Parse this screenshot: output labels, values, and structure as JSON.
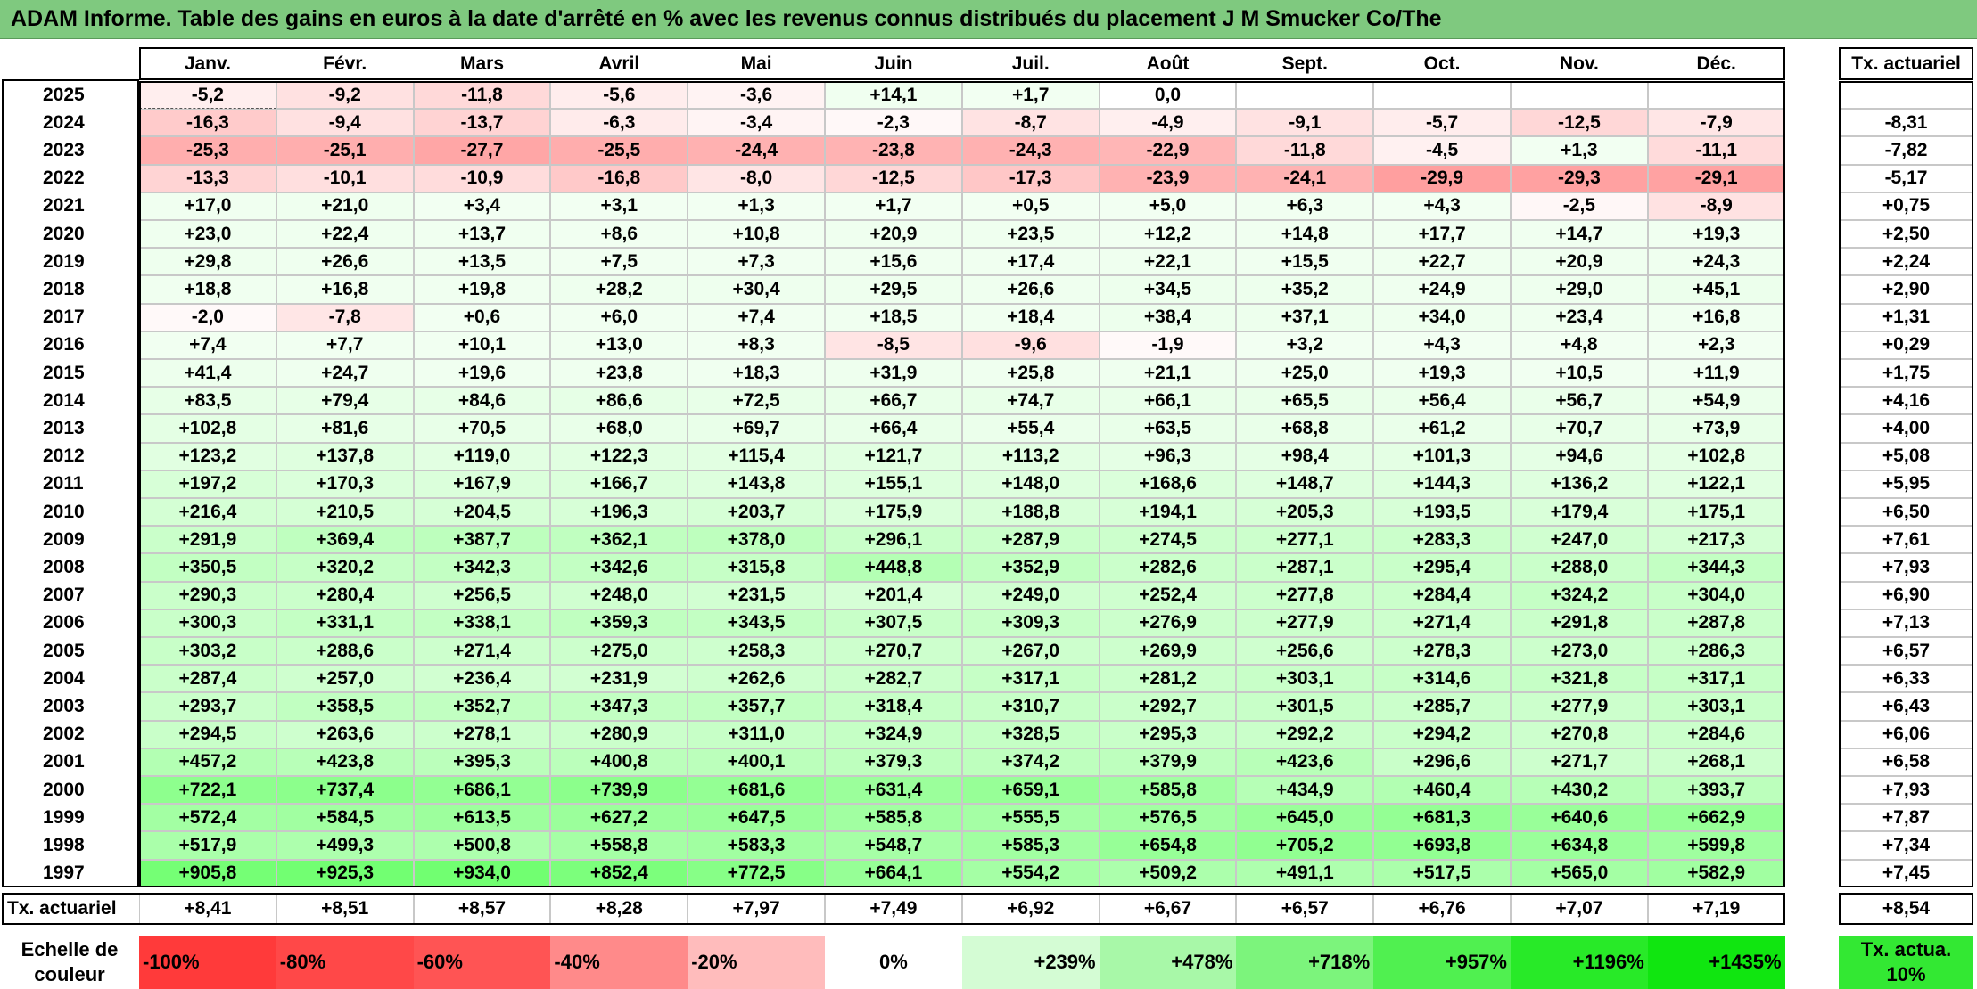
{
  "title": "ADAM Informe. Table des gains en euros à la date d'arrêté en % avec les revenus connus distribués du placement J M Smucker Co/The",
  "chart_data": {
    "type": "heatmap",
    "title": "ADAM Informe. Table des gains en euros à la date d'arrêté en % avec les revenus connus distribués du placement J M Smucker Co/The",
    "months": [
      "Janv.",
      "Févr.",
      "Mars",
      "Avril",
      "Mai",
      "Juin",
      "Juil.",
      "Août",
      "Sept.",
      "Oct.",
      "Nov.",
      "Déc."
    ],
    "rate_header": "Tx. actuariel",
    "years": [
      "2025",
      "2024",
      "2023",
      "2022",
      "2021",
      "2020",
      "2019",
      "2018",
      "2017",
      "2016",
      "2015",
      "2014",
      "2013",
      "2012",
      "2011",
      "2010",
      "2009",
      "2008",
      "2007",
      "2006",
      "2005",
      "2004",
      "2003",
      "2002",
      "2001",
      "2000",
      "1999",
      "1998",
      "1997"
    ],
    "values": [
      [
        "-5,2",
        "-9,2",
        "-11,8",
        "-5,6",
        "-3,6",
        "+14,1",
        "+1,7",
        "0,0",
        "",
        "",
        "",
        ""
      ],
      [
        "-16,3",
        "-9,4",
        "-13,7",
        "-6,3",
        "-3,4",
        "-2,3",
        "-8,7",
        "-4,9",
        "-9,1",
        "-5,7",
        "-12,5",
        "-7,9"
      ],
      [
        "-25,3",
        "-25,1",
        "-27,7",
        "-25,5",
        "-24,4",
        "-23,8",
        "-24,3",
        "-22,9",
        "-11,8",
        "-4,5",
        "+1,3",
        "-11,1"
      ],
      [
        "-13,3",
        "-10,1",
        "-10,9",
        "-16,8",
        "-8,0",
        "-12,5",
        "-17,3",
        "-23,9",
        "-24,1",
        "-29,9",
        "-29,3",
        "-29,1"
      ],
      [
        "+17,0",
        "+21,0",
        "+3,4",
        "+3,1",
        "+1,3",
        "+1,7",
        "+0,5",
        "+5,0",
        "+6,3",
        "+4,3",
        "-2,5",
        "-8,9"
      ],
      [
        "+23,0",
        "+22,4",
        "+13,7",
        "+8,6",
        "+10,8",
        "+20,9",
        "+23,5",
        "+12,2",
        "+14,8",
        "+17,7",
        "+14,7",
        "+19,3"
      ],
      [
        "+29,8",
        "+26,6",
        "+13,5",
        "+7,5",
        "+7,3",
        "+15,6",
        "+17,4",
        "+22,1",
        "+15,5",
        "+22,7",
        "+20,9",
        "+24,3"
      ],
      [
        "+18,8",
        "+16,8",
        "+19,8",
        "+28,2",
        "+30,4",
        "+29,5",
        "+26,6",
        "+34,5",
        "+35,2",
        "+24,9",
        "+29,0",
        "+45,1"
      ],
      [
        "-2,0",
        "-7,8",
        "+0,6",
        "+6,0",
        "+7,4",
        "+18,5",
        "+18,4",
        "+38,4",
        "+37,1",
        "+34,0",
        "+23,4",
        "+16,8"
      ],
      [
        "+7,4",
        "+7,7",
        "+10,1",
        "+13,0",
        "+8,3",
        "-8,5",
        "-9,6",
        "-1,9",
        "+3,2",
        "+4,3",
        "+4,8",
        "+2,3"
      ],
      [
        "+41,4",
        "+24,7",
        "+19,6",
        "+23,8",
        "+18,3",
        "+31,9",
        "+25,8",
        "+21,1",
        "+25,0",
        "+19,3",
        "+10,5",
        "+11,9"
      ],
      [
        "+83,5",
        "+79,4",
        "+84,6",
        "+86,6",
        "+72,5",
        "+66,7",
        "+74,7",
        "+66,1",
        "+65,5",
        "+56,4",
        "+56,7",
        "+54,9"
      ],
      [
        "+102,8",
        "+81,6",
        "+70,5",
        "+68,0",
        "+69,7",
        "+66,4",
        "+55,4",
        "+63,5",
        "+68,8",
        "+61,2",
        "+70,7",
        "+73,9"
      ],
      [
        "+123,2",
        "+137,8",
        "+119,0",
        "+122,3",
        "+115,4",
        "+121,7",
        "+113,2",
        "+96,3",
        "+98,4",
        "+101,3",
        "+94,6",
        "+102,8"
      ],
      [
        "+197,2",
        "+170,3",
        "+167,9",
        "+166,7",
        "+143,8",
        "+155,1",
        "+148,0",
        "+168,6",
        "+148,7",
        "+144,3",
        "+136,2",
        "+122,1"
      ],
      [
        "+216,4",
        "+210,5",
        "+204,5",
        "+196,3",
        "+203,7",
        "+175,9",
        "+188,8",
        "+194,1",
        "+205,3",
        "+193,5",
        "+179,4",
        "+175,1"
      ],
      [
        "+291,9",
        "+369,4",
        "+387,7",
        "+362,1",
        "+378,0",
        "+296,1",
        "+287,9",
        "+274,5",
        "+277,1",
        "+283,3",
        "+247,0",
        "+217,3"
      ],
      [
        "+350,5",
        "+320,2",
        "+342,3",
        "+342,6",
        "+315,8",
        "+448,8",
        "+352,9",
        "+282,6",
        "+287,1",
        "+295,4",
        "+288,0",
        "+344,3"
      ],
      [
        "+290,3",
        "+280,4",
        "+256,5",
        "+248,0",
        "+231,5",
        "+201,4",
        "+249,0",
        "+252,4",
        "+277,8",
        "+284,4",
        "+324,2",
        "+304,0"
      ],
      [
        "+300,3",
        "+331,1",
        "+338,1",
        "+359,3",
        "+343,5",
        "+307,5",
        "+309,3",
        "+276,9",
        "+277,9",
        "+271,4",
        "+291,8",
        "+287,8"
      ],
      [
        "+303,2",
        "+288,6",
        "+271,4",
        "+275,0",
        "+258,3",
        "+270,7",
        "+267,0",
        "+269,9",
        "+256,6",
        "+278,3",
        "+273,0",
        "+286,3"
      ],
      [
        "+287,4",
        "+257,0",
        "+236,4",
        "+231,9",
        "+262,6",
        "+282,7",
        "+317,1",
        "+281,2",
        "+303,1",
        "+314,6",
        "+321,8",
        "+317,1"
      ],
      [
        "+293,7",
        "+358,5",
        "+352,7",
        "+347,3",
        "+357,7",
        "+318,4",
        "+310,7",
        "+292,7",
        "+301,5",
        "+285,7",
        "+277,9",
        "+303,1"
      ],
      [
        "+294,5",
        "+263,6",
        "+278,1",
        "+280,9",
        "+311,0",
        "+324,9",
        "+328,5",
        "+295,3",
        "+292,2",
        "+294,2",
        "+270,8",
        "+284,6"
      ],
      [
        "+457,2",
        "+423,8",
        "+395,3",
        "+400,8",
        "+400,1",
        "+379,3",
        "+374,2",
        "+379,9",
        "+423,6",
        "+296,6",
        "+271,7",
        "+268,1"
      ],
      [
        "+722,1",
        "+737,4",
        "+686,1",
        "+739,9",
        "+681,6",
        "+631,4",
        "+659,1",
        "+585,8",
        "+434,9",
        "+460,4",
        "+430,2",
        "+393,7"
      ],
      [
        "+572,4",
        "+584,5",
        "+613,5",
        "+627,2",
        "+647,5",
        "+585,8",
        "+555,5",
        "+576,5",
        "+645,0",
        "+681,3",
        "+640,6",
        "+662,9"
      ],
      [
        "+517,9",
        "+499,3",
        "+500,8",
        "+558,8",
        "+583,3",
        "+548,7",
        "+585,3",
        "+654,8",
        "+705,2",
        "+693,8",
        "+634,8",
        "+599,8"
      ],
      [
        "+905,8",
        "+925,3",
        "+934,0",
        "+852,4",
        "+772,5",
        "+664,1",
        "+554,2",
        "+509,2",
        "+491,1",
        "+517,5",
        "+565,0",
        "+582,9"
      ]
    ],
    "year_rates": [
      "",
      "-8,31",
      "-7,82",
      "-5,17",
      "+0,75",
      "+2,50",
      "+2,24",
      "+2,90",
      "+1,31",
      "+0,29",
      "+1,75",
      "+4,16",
      "+4,00",
      "+5,08",
      "+5,95",
      "+6,50",
      "+7,61",
      "+7,93",
      "+6,90",
      "+7,13",
      "+6,57",
      "+6,33",
      "+6,43",
      "+6,06",
      "+6,58",
      "+7,93",
      "+7,87",
      "+7,34",
      "+7,45"
    ],
    "footer_label": "Tx. actuariel",
    "month_rates": [
      "+8,41",
      "+8,51",
      "+8,57",
      "+8,28",
      "+7,97",
      "+7,49",
      "+6,92",
      "+6,67",
      "+6,57",
      "+6,76",
      "+7,07",
      "+7,19"
    ],
    "overall_rate": "+8,54",
    "scale": {
      "label": "Echelle de couleur",
      "steps": [
        "-100%",
        "-80%",
        "-60%",
        "-40%",
        "-20%",
        "0%",
        "+239%",
        "+478%",
        "+718%",
        "+957%",
        "+1196%",
        "+1435%"
      ],
      "rate_label": "Tx. actua. 10%"
    },
    "colors": {
      "negative_full": "#ff3030",
      "neutral": "#ffffff",
      "positive_full": "#00ff00",
      "title_bar": "#7fc97f",
      "rate_swatch": "#33e833"
    }
  }
}
